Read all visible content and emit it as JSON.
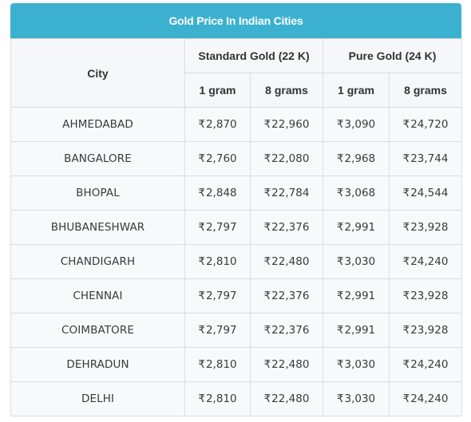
{
  "table": {
    "caption": "Gold Price In Indian Cities",
    "headers": {
      "city": "City",
      "standard": "Standard Gold (22 K)",
      "pure": "Pure Gold (24 K)",
      "gram1": "1 gram",
      "gram8": "8 grams"
    },
    "currency_symbol": "₹",
    "rows": [
      {
        "city": "AHMEDABAD",
        "s1": "2,870",
        "s8": "22,960",
        "p1": "3,090",
        "p8": "24,720"
      },
      {
        "city": "BANGALORE",
        "s1": "2,760",
        "s8": "22,080",
        "p1": "2,968",
        "p8": "23,744"
      },
      {
        "city": "BHOPAL",
        "s1": "2,848",
        "s8": "22,784",
        "p1": "3,068",
        "p8": "24,544"
      },
      {
        "city": "BHUBANESHWAR",
        "s1": "2,797",
        "s8": "22,376",
        "p1": "2,991",
        "p8": "23,928"
      },
      {
        "city": "CHANDIGARH",
        "s1": "2,810",
        "s8": "22,480",
        "p1": "3,030",
        "p8": "24,240"
      },
      {
        "city": "CHENNAI",
        "s1": "2,797",
        "s8": "22,376",
        "p1": "2,991",
        "p8": "23,928"
      },
      {
        "city": "COIMBATORE",
        "s1": "2,797",
        "s8": "22,376",
        "p1": "2,991",
        "p8": "23,928"
      },
      {
        "city": "DEHRADUN",
        "s1": "2,810",
        "s8": "22,480",
        "p1": "3,030",
        "p8": "24,240"
      },
      {
        "city": "DELHI",
        "s1": "2,810",
        "s8": "22,480",
        "p1": "3,030",
        "p8": "24,240"
      }
    ]
  },
  "colors": {
    "caption_bg": "#3bb1cf",
    "cell_bg": "#f8f9fa",
    "border": "#dcdcdc",
    "text": "#3a3a3a"
  }
}
